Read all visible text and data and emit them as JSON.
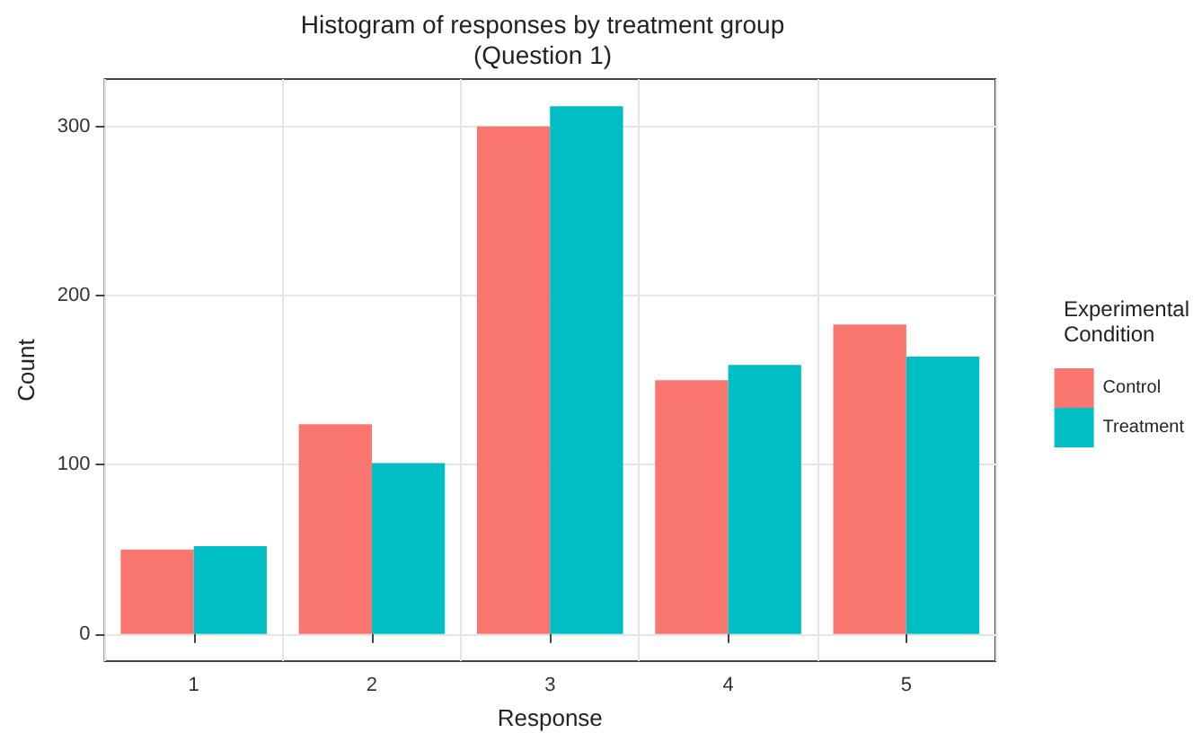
{
  "chart_data": {
    "type": "bar",
    "title": "Histogram of responses by treatment group\n(Question 1)",
    "xlabel": "Response",
    "ylabel": "Count",
    "legend_title": "Experimental\nCondition",
    "categories": [
      "1",
      "2",
      "3",
      "4",
      "5"
    ],
    "series": [
      {
        "name": "Control",
        "color": "#f8766d",
        "values": [
          50,
          124,
          300,
          150,
          183
        ]
      },
      {
        "name": "Treatment",
        "color": "#00bfc4",
        "values": [
          52,
          101,
          312,
          159,
          164
        ]
      }
    ],
    "ylim": [
      -16,
      328
    ],
    "yticks": [
      0,
      100,
      200,
      300
    ],
    "grid": true,
    "legend": "right"
  }
}
